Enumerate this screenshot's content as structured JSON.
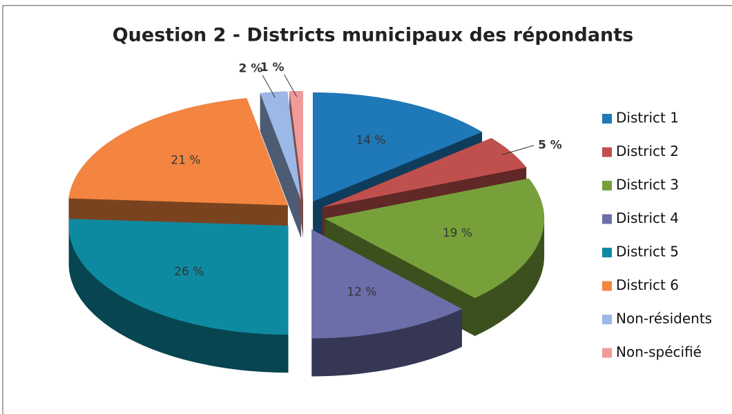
{
  "chart_data": {
    "type": "pie",
    "title": "Question 2 - Districts municipaux des répondants",
    "categories": [
      "District 1",
      "District 2",
      "District 3",
      "District 4",
      "District 5",
      "District 6",
      "Non-résidents",
      "Non-spécifié"
    ],
    "values": [
      14,
      5,
      19,
      12,
      26,
      21,
      2,
      1
    ],
    "value_labels": [
      "14 %",
      "5 %",
      "19 %",
      "12 %",
      "26 %",
      "21 %",
      "2 %",
      "1 %"
    ],
    "colors": [
      "#1f78b8",
      "#c0504d",
      "#77a03a",
      "#6b6ea8",
      "#0e8aa0",
      "#f38540",
      "#9bb8e6",
      "#f09a9a"
    ],
    "legend": "right"
  }
}
